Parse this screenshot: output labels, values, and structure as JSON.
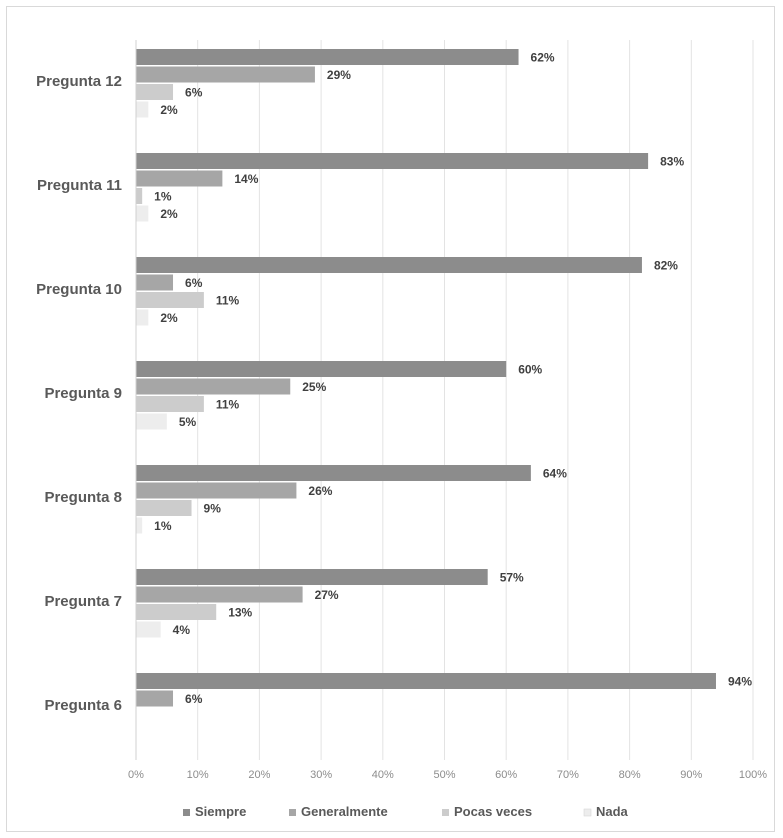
{
  "chart_data": {
    "type": "bar",
    "orientation": "horizontal",
    "title": "",
    "xlabel": "",
    "ylabel": "",
    "xlim": [
      0,
      100
    ],
    "x_ticks": [
      "0%",
      "10%",
      "20%",
      "30%",
      "40%",
      "50%",
      "60%",
      "70%",
      "80%",
      "90%",
      "100%"
    ],
    "grid": true,
    "legend_position": "bottom",
    "categories": [
      "Pregunta 12",
      "Pregunta 11",
      "Pregunta 10",
      "Pregunta 9",
      "Pregunta 8",
      "Pregunta 7",
      "Pregunta 6"
    ],
    "series": [
      {
        "name": "Siempre",
        "color": "#8c8c8c",
        "values": [
          62,
          83,
          82,
          60,
          64,
          57,
          94
        ]
      },
      {
        "name": "Generalmente",
        "color": "#a6a6a6",
        "values": [
          29,
          14,
          6,
          25,
          26,
          27,
          6
        ]
      },
      {
        "name": "Pocas veces",
        "color": "#cccccc",
        "values": [
          6,
          1,
          11,
          11,
          9,
          13,
          null
        ]
      },
      {
        "name": "Nada",
        "color": "#ededed",
        "values": [
          2,
          2,
          2,
          5,
          1,
          4,
          null
        ]
      }
    ]
  }
}
